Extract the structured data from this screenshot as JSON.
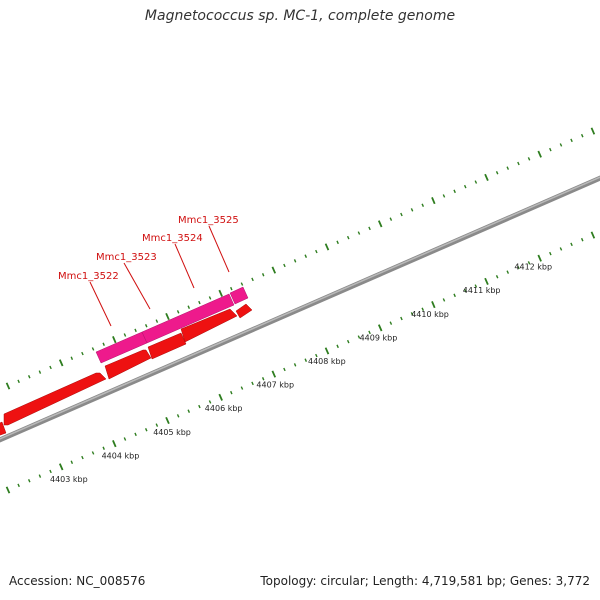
{
  "title": "Magnetococcus sp. MC-1, complete genome",
  "footer": {
    "accession": "Accession: NC_008576",
    "summary": "Topology: circular; Length: 4,719,581 bp; Genes: 3,772"
  },
  "colors": {
    "backbone": "#8a8a8a",
    "tick": "#2e7d1f",
    "gene_forward": "#ee1a8c",
    "gene_reverse": "#ee1111",
    "label": "#d01010",
    "scale_text": "#222222"
  },
  "scale_labels": [
    "4403 kbp",
    "4404 kbp",
    "4405 kbp",
    "4406 kbp",
    "4407 kbp",
    "4408 kbp",
    "4409 kbp",
    "4410 kbp",
    "4411 kbp",
    "4412 kbp"
  ],
  "gene_labels": [
    "Mmc1_3522",
    "Mmc1_3523",
    "Mmc1_3524",
    "Mmc1_3525"
  ]
}
